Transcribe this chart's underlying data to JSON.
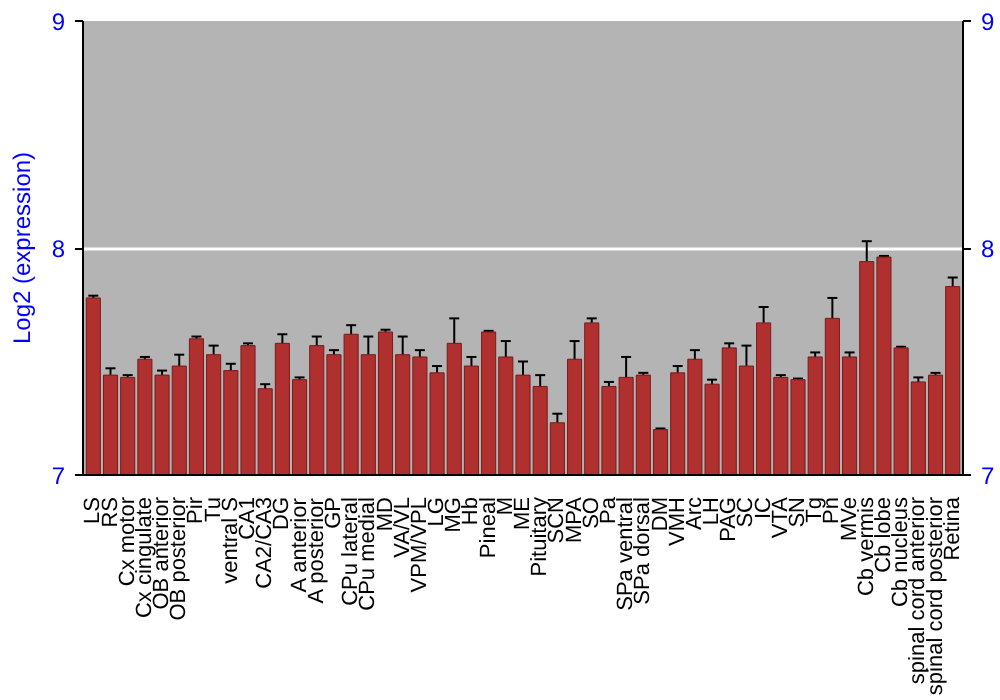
{
  "chart_data": {
    "type": "bar",
    "ylabel": "Log2 (expression)",
    "categories": [
      "LS",
      "RS",
      "Cx motor",
      "Cx cingulate",
      "OB anterior",
      "OB posterior",
      "Pir",
      "Tu",
      "ventral S",
      "CA1",
      "CA2/CA3",
      "DG",
      "A anterior",
      "A posterior",
      "GP",
      "CPu lateral",
      "CPu medial",
      "MD",
      "VA/VL",
      "VPM/VPL",
      "LG",
      "MG",
      "Hb",
      "Pineal",
      "M",
      "ME",
      "Pituitary",
      "SCN",
      "MPA",
      "SO",
      "Pa",
      "SPa ventral",
      "SPa dorsal",
      "DM",
      "VMH",
      "Arc",
      "LH",
      "PAG",
      "SC",
      "IC",
      "VTA",
      "SN",
      "Tg",
      "Pn",
      "MVe",
      "Cb vermis",
      "Cb lobe",
      "Cb nucleus",
      "spinal cord anterior",
      "spinal cord posterior",
      "Retina"
    ],
    "values": [
      7.78,
      7.44,
      7.43,
      7.51,
      7.44,
      7.48,
      7.6,
      7.53,
      7.46,
      7.57,
      7.38,
      7.58,
      7.42,
      7.57,
      7.53,
      7.62,
      7.53,
      7.63,
      7.53,
      7.52,
      7.45,
      7.58,
      7.48,
      7.63,
      7.52,
      7.44,
      7.39,
      7.23,
      7.51,
      7.67,
      7.39,
      7.43,
      7.44,
      7.2,
      7.45,
      7.51,
      7.4,
      7.56,
      7.48,
      7.67,
      7.43,
      7.42,
      7.52,
      7.69,
      7.52,
      7.94,
      7.96,
      7.56,
      7.41,
      7.44,
      7.83
    ],
    "errors": [
      0.01,
      0.03,
      0.01,
      0.01,
      0.02,
      0.05,
      0.01,
      0.04,
      0.03,
      0.01,
      0.02,
      0.04,
      0.01,
      0.04,
      0.02,
      0.04,
      0.08,
      0.01,
      0.08,
      0.03,
      0.03,
      0.11,
      0.04,
      0.005,
      0.07,
      0.06,
      0.05,
      0.04,
      0.08,
      0.02,
      0.02,
      0.09,
      0.01,
      0.005,
      0.03,
      0.04,
      0.02,
      0.02,
      0.09,
      0.07,
      0.01,
      0.005,
      0.02,
      0.09,
      0.02,
      0.09,
      0.005,
      0.005,
      0.02,
      0.01,
      0.04
    ],
    "color": "#b03030",
    "ylim": [
      7,
      9
    ],
    "yticks": [
      7,
      8,
      9
    ],
    "y2lim": [
      7,
      9
    ],
    "y2ticks": [
      7,
      8,
      9
    ],
    "grid": "y"
  }
}
